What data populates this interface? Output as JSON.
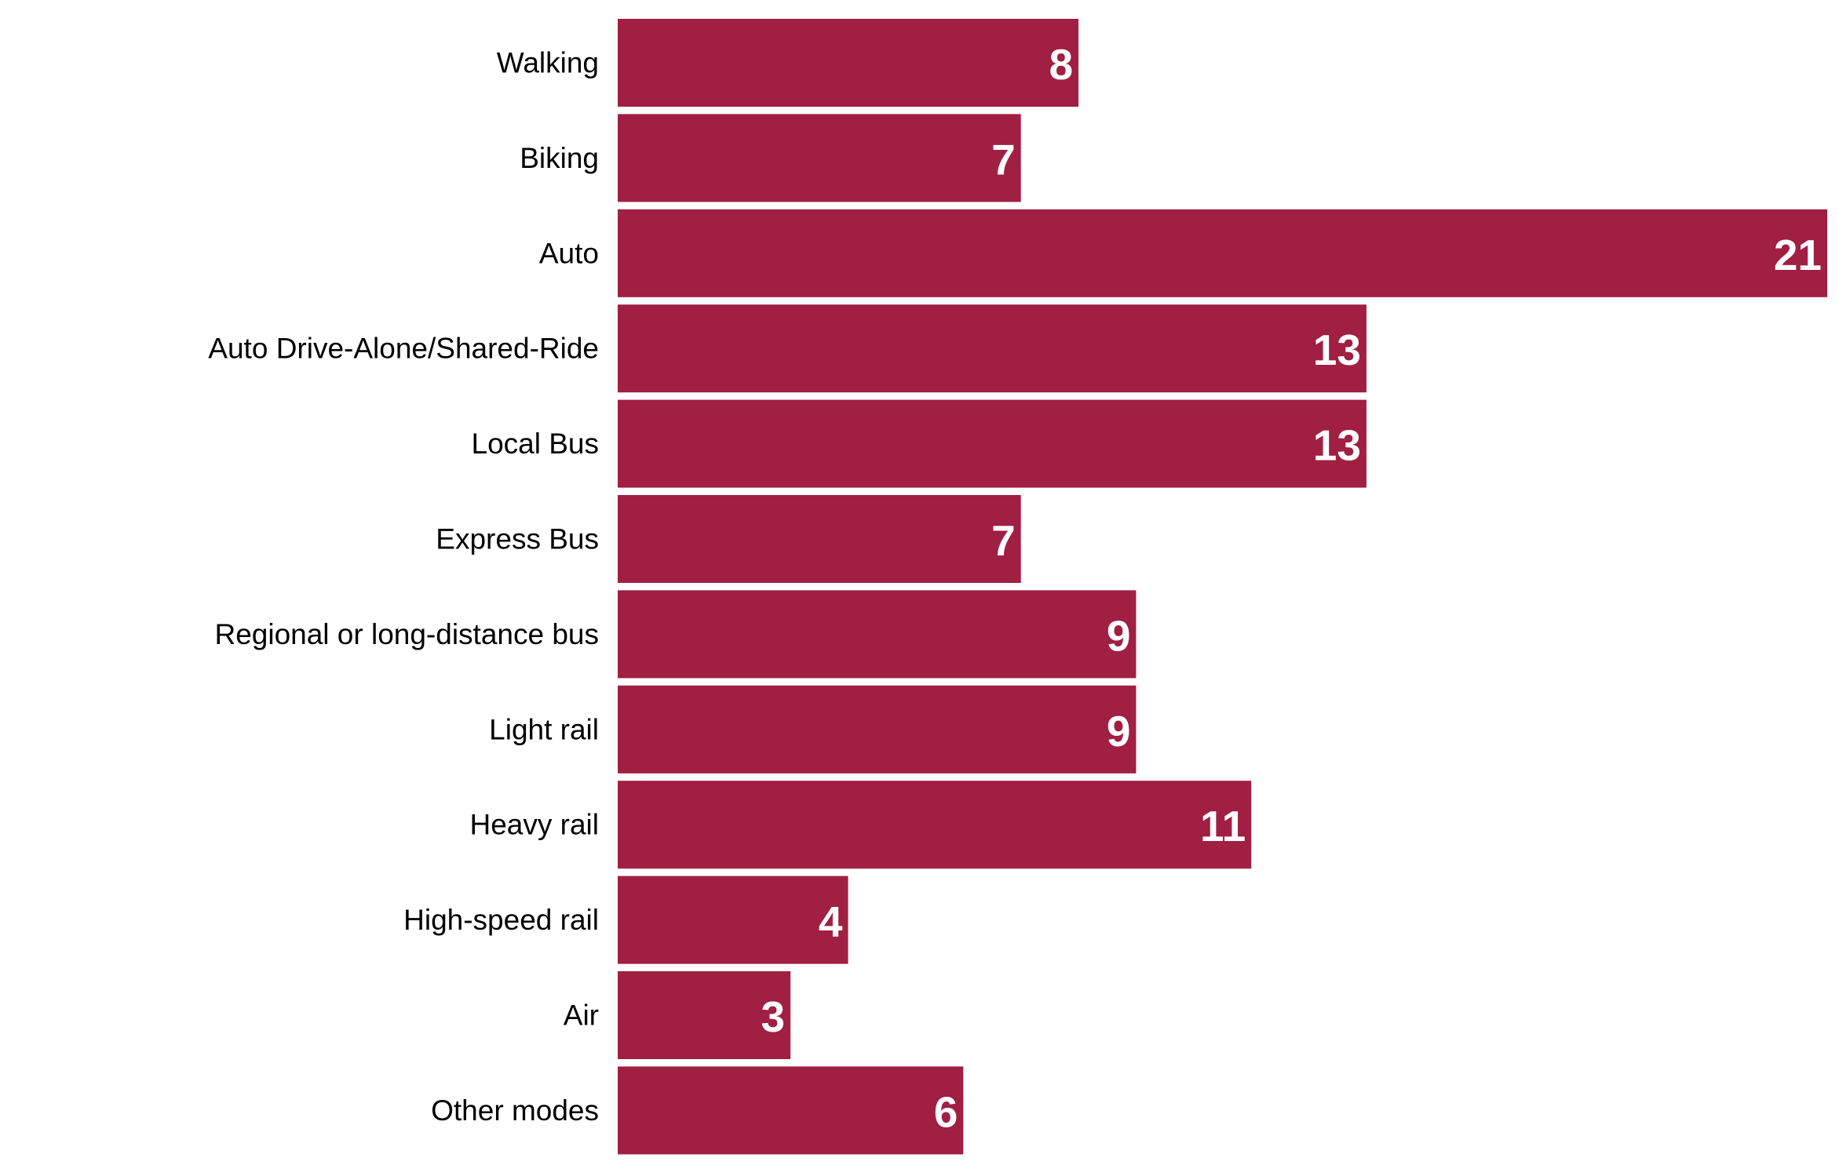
{
  "chart_data": {
    "type": "bar",
    "orientation": "horizontal",
    "categories": [
      "Walking",
      "Biking",
      "Auto",
      "Auto Drive-Alone/Shared-Ride",
      "Local Bus",
      "Express Bus",
      "Regional or long-distance bus",
      "Light rail",
      "Heavy rail",
      "High-speed rail",
      "Air",
      "Other modes"
    ],
    "values": [
      8,
      7,
      21,
      13,
      13,
      7,
      9,
      9,
      11,
      4,
      3,
      6
    ],
    "title": "",
    "xlabel": "",
    "ylabel": "",
    "xlim": [
      0,
      21
    ],
    "grid": false,
    "legend": "none",
    "data_labels": "inside-end",
    "bar_color": "#a01f43",
    "label_color": "#ffffff"
  }
}
